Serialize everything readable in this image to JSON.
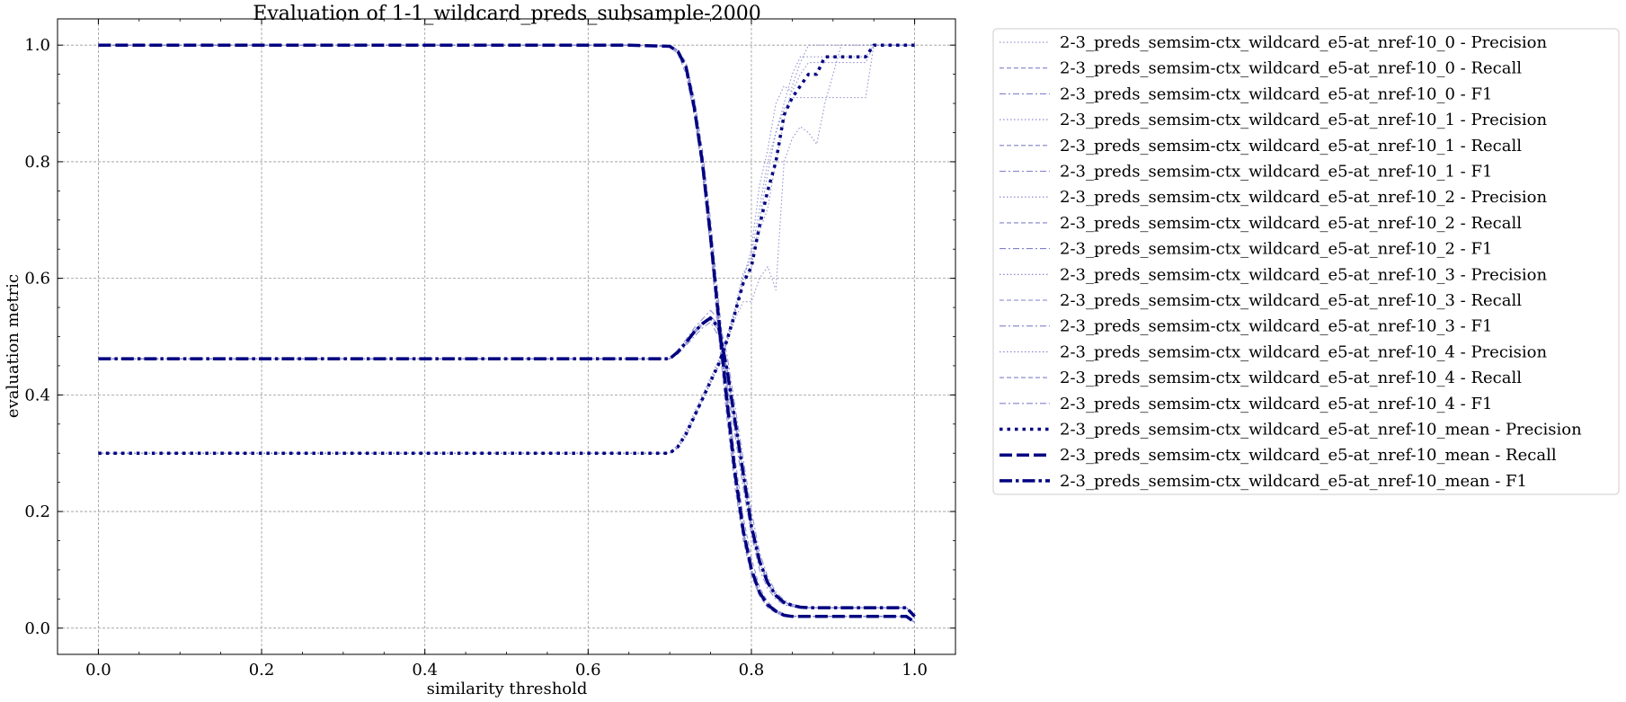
{
  "chart_data": {
    "type": "line",
    "title": "Evaluation of 1-1_wildcard_preds_subsample-2000",
    "xlabel": "similarity threshold",
    "ylabel": "evaluation metric",
    "xlim": [
      -0.05,
      1.05
    ],
    "ylim": [
      -0.045,
      1.045
    ],
    "xticks": [
      0.0,
      0.2,
      0.4,
      0.6,
      0.8,
      1.0
    ],
    "xtick_labels": [
      "0.0",
      "0.2",
      "0.4",
      "0.6",
      "0.8",
      "1.0"
    ],
    "yticks": [
      0.0,
      0.2,
      0.4,
      0.6,
      0.8,
      1.0
    ],
    "ytick_labels": [
      "0.0",
      "0.2",
      "0.4",
      "0.6",
      "0.8",
      "1.0"
    ],
    "grid": true,
    "legend_position": "outside-right-top",
    "colors": {
      "runs": "#8080cc",
      "mean": "#000080"
    },
    "x": [
      0.0,
      0.05,
      0.1,
      0.15,
      0.2,
      0.25,
      0.3,
      0.35,
      0.4,
      0.45,
      0.5,
      0.55,
      0.6,
      0.65,
      0.7,
      0.71,
      0.72,
      0.73,
      0.74,
      0.75,
      0.76,
      0.77,
      0.78,
      0.79,
      0.8,
      0.81,
      0.82,
      0.83,
      0.84,
      0.85,
      0.86,
      0.87,
      0.88,
      0.89,
      0.9,
      0.91,
      0.92,
      0.93,
      0.94,
      0.95,
      0.96,
      0.97,
      0.98,
      0.99,
      1.0
    ],
    "series": [
      {
        "name": "2-3_preds_semsim-ctx_wildcard_e5-at_nref-10_0 - Precision",
        "metric": "precision",
        "style": "run",
        "values": [
          0.3,
          0.3,
          0.3,
          0.3,
          0.3,
          0.3,
          0.3,
          0.3,
          0.3,
          0.3,
          0.3,
          0.3,
          0.3,
          0.3,
          0.3,
          0.315,
          0.34,
          0.37,
          0.4,
          0.43,
          0.46,
          0.5,
          0.55,
          0.61,
          0.63,
          0.68,
          0.72,
          0.8,
          0.87,
          0.93,
          0.97,
          1.0,
          1.0,
          1.0,
          1.0,
          1.0,
          1.0,
          1.0,
          1.0,
          1.0,
          1.0,
          1.0,
          1.0,
          1.0,
          1.0
        ]
      },
      {
        "name": "2-3_preds_semsim-ctx_wildcard_e5-at_nref-10_0 - Recall",
        "metric": "recall",
        "style": "run",
        "values": [
          1.0,
          1.0,
          1.0,
          1.0,
          1.0,
          1.0,
          1.0,
          1.0,
          1.0,
          1.0,
          1.0,
          1.0,
          1.0,
          1.0,
          0.998,
          0.99,
          0.965,
          0.9,
          0.8,
          0.68,
          0.54,
          0.4,
          0.27,
          0.17,
          0.1,
          0.06,
          0.04,
          0.03,
          0.022,
          0.02,
          0.02,
          0.02,
          0.02,
          0.02,
          0.02,
          0.02,
          0.02,
          0.02,
          0.02,
          0.02,
          0.02,
          0.02,
          0.02,
          0.02,
          0.01
        ]
      },
      {
        "name": "2-3_preds_semsim-ctx_wildcard_e5-at_nref-10_0 - F1",
        "metric": "f1",
        "style": "run",
        "values": [
          0.462,
          0.462,
          0.462,
          0.462,
          0.462,
          0.462,
          0.462,
          0.462,
          0.462,
          0.462,
          0.462,
          0.462,
          0.462,
          0.462,
          0.462,
          0.475,
          0.49,
          0.51,
          0.525,
          0.535,
          0.52,
          0.45,
          0.36,
          0.27,
          0.18,
          0.12,
          0.08,
          0.058,
          0.045,
          0.04,
          0.037,
          0.036,
          0.035,
          0.035,
          0.035,
          0.035,
          0.035,
          0.035,
          0.035,
          0.035,
          0.035,
          0.035,
          0.035,
          0.035,
          0.02
        ]
      },
      {
        "name": "2-3_preds_semsim-ctx_wildcard_e5-at_nref-10_1 - Precision",
        "metric": "precision",
        "style": "run",
        "values": [
          0.3,
          0.3,
          0.3,
          0.3,
          0.3,
          0.3,
          0.3,
          0.3,
          0.3,
          0.3,
          0.3,
          0.3,
          0.3,
          0.3,
          0.3,
          0.31,
          0.33,
          0.36,
          0.39,
          0.42,
          0.45,
          0.49,
          0.53,
          0.56,
          0.56,
          0.6,
          0.62,
          0.58,
          0.8,
          0.84,
          0.86,
          0.85,
          0.83,
          0.9,
          0.95,
          1.0,
          1.0,
          1.0,
          1.0,
          1.0,
          1.0,
          1.0,
          1.0,
          1.0,
          1.0
        ]
      },
      {
        "name": "2-3_preds_semsim-ctx_wildcard_e5-at_nref-10_1 - Recall",
        "metric": "recall",
        "style": "run",
        "values": [
          1.0,
          1.0,
          1.0,
          1.0,
          1.0,
          1.0,
          1.0,
          1.0,
          1.0,
          1.0,
          1.0,
          1.0,
          1.0,
          1.0,
          0.997,
          0.985,
          0.95,
          0.88,
          0.78,
          0.65,
          0.5,
          0.36,
          0.24,
          0.15,
          0.09,
          0.055,
          0.035,
          0.026,
          0.021,
          0.02,
          0.02,
          0.02,
          0.02,
          0.02,
          0.02,
          0.02,
          0.02,
          0.02,
          0.02,
          0.02,
          0.02,
          0.02,
          0.02,
          0.02,
          0.01
        ]
      },
      {
        "name": "2-3_preds_semsim-ctx_wildcard_e5-at_nref-10_1 - F1",
        "metric": "f1",
        "style": "run",
        "values": [
          0.462,
          0.462,
          0.462,
          0.462,
          0.462,
          0.462,
          0.462,
          0.462,
          0.462,
          0.462,
          0.462,
          0.462,
          0.462,
          0.462,
          0.462,
          0.47,
          0.485,
          0.5,
          0.515,
          0.525,
          0.5,
          0.42,
          0.33,
          0.24,
          0.16,
          0.1,
          0.068,
          0.05,
          0.04,
          0.037,
          0.036,
          0.035,
          0.035,
          0.035,
          0.035,
          0.035,
          0.035,
          0.035,
          0.035,
          0.035,
          0.035,
          0.035,
          0.035,
          0.035,
          0.02
        ]
      },
      {
        "name": "2-3_preds_semsim-ctx_wildcard_e5-at_nref-10_2 - Precision",
        "metric": "precision",
        "style": "run",
        "values": [
          0.3,
          0.3,
          0.3,
          0.3,
          0.3,
          0.3,
          0.3,
          0.3,
          0.3,
          0.3,
          0.3,
          0.3,
          0.3,
          0.3,
          0.3,
          0.312,
          0.335,
          0.365,
          0.395,
          0.425,
          0.455,
          0.495,
          0.545,
          0.59,
          0.62,
          0.7,
          0.78,
          0.85,
          0.89,
          0.91,
          0.91,
          0.91,
          0.91,
          0.91,
          0.91,
          0.91,
          0.91,
          0.91,
          0.91,
          1.0,
          1.0,
          1.0,
          1.0,
          1.0,
          1.0
        ]
      },
      {
        "name": "2-3_preds_semsim-ctx_wildcard_e5-at_nref-10_2 - Recall",
        "metric": "recall",
        "style": "run",
        "values": [
          1.0,
          1.0,
          1.0,
          1.0,
          1.0,
          1.0,
          1.0,
          1.0,
          1.0,
          1.0,
          1.0,
          1.0,
          1.0,
          1.0,
          0.999,
          0.992,
          0.97,
          0.91,
          0.82,
          0.7,
          0.56,
          0.42,
          0.29,
          0.19,
          0.12,
          0.07,
          0.045,
          0.032,
          0.024,
          0.021,
          0.02,
          0.02,
          0.02,
          0.02,
          0.02,
          0.02,
          0.02,
          0.02,
          0.02,
          0.02,
          0.02,
          0.02,
          0.02,
          0.02,
          0.01
        ]
      },
      {
        "name": "2-3_preds_semsim-ctx_wildcard_e5-at_nref-10_2 - F1",
        "metric": "f1",
        "style": "run",
        "values": [
          0.462,
          0.462,
          0.462,
          0.462,
          0.462,
          0.462,
          0.462,
          0.462,
          0.462,
          0.462,
          0.462,
          0.462,
          0.462,
          0.462,
          0.462,
          0.477,
          0.495,
          0.515,
          0.53,
          0.545,
          0.53,
          0.47,
          0.38,
          0.29,
          0.2,
          0.13,
          0.088,
          0.062,
          0.048,
          0.041,
          0.038,
          0.036,
          0.035,
          0.035,
          0.035,
          0.035,
          0.035,
          0.035,
          0.035,
          0.035,
          0.035,
          0.035,
          0.035,
          0.035,
          0.02
        ]
      },
      {
        "name": "2-3_preds_semsim-ctx_wildcard_e5-at_nref-10_3 - Precision",
        "metric": "precision",
        "style": "run",
        "values": [
          0.3,
          0.3,
          0.3,
          0.3,
          0.3,
          0.3,
          0.3,
          0.3,
          0.3,
          0.3,
          0.3,
          0.3,
          0.3,
          0.3,
          0.3,
          0.308,
          0.33,
          0.36,
          0.39,
          0.42,
          0.45,
          0.49,
          0.54,
          0.6,
          0.65,
          0.76,
          0.82,
          0.9,
          0.93,
          0.92,
          0.95,
          0.97,
          0.97,
          0.97,
          0.97,
          0.97,
          0.97,
          0.97,
          0.97,
          1.0,
          1.0,
          1.0,
          1.0,
          1.0,
          1.0
        ]
      },
      {
        "name": "2-3_preds_semsim-ctx_wildcard_e5-at_nref-10_3 - Recall",
        "metric": "recall",
        "style": "run",
        "values": [
          1.0,
          1.0,
          1.0,
          1.0,
          1.0,
          1.0,
          1.0,
          1.0,
          1.0,
          1.0,
          1.0,
          1.0,
          1.0,
          1.0,
          0.998,
          0.988,
          0.96,
          0.89,
          0.79,
          0.66,
          0.52,
          0.38,
          0.26,
          0.16,
          0.095,
          0.058,
          0.038,
          0.028,
          0.022,
          0.02,
          0.02,
          0.02,
          0.02,
          0.02,
          0.02,
          0.02,
          0.02,
          0.02,
          0.02,
          0.02,
          0.02,
          0.02,
          0.02,
          0.02,
          0.01
        ]
      },
      {
        "name": "2-3_preds_semsim-ctx_wildcard_e5-at_nref-10_3 - F1",
        "metric": "f1",
        "style": "run",
        "values": [
          0.462,
          0.462,
          0.462,
          0.462,
          0.462,
          0.462,
          0.462,
          0.462,
          0.462,
          0.462,
          0.462,
          0.462,
          0.462,
          0.462,
          0.462,
          0.472,
          0.488,
          0.505,
          0.52,
          0.53,
          0.51,
          0.44,
          0.35,
          0.26,
          0.17,
          0.11,
          0.075,
          0.055,
          0.043,
          0.038,
          0.036,
          0.035,
          0.035,
          0.035,
          0.035,
          0.035,
          0.035,
          0.035,
          0.035,
          0.035,
          0.035,
          0.035,
          0.035,
          0.035,
          0.02
        ]
      },
      {
        "name": "2-3_preds_semsim-ctx_wildcard_e5-at_nref-10_4 - Precision",
        "metric": "precision",
        "style": "run",
        "values": [
          0.3,
          0.3,
          0.3,
          0.3,
          0.3,
          0.3,
          0.3,
          0.3,
          0.3,
          0.3,
          0.3,
          0.3,
          0.3,
          0.3,
          0.3,
          0.31,
          0.332,
          0.362,
          0.392,
          0.422,
          0.452,
          0.492,
          0.54,
          0.6,
          0.64,
          0.72,
          0.8,
          0.85,
          0.9,
          0.95,
          0.98,
          0.98,
          0.98,
          0.98,
          0.98,
          0.98,
          0.98,
          0.98,
          0.98,
          1.0,
          1.0,
          1.0,
          1.0,
          1.0,
          1.0
        ]
      },
      {
        "name": "2-3_preds_semsim-ctx_wildcard_e5-at_nref-10_4 - Recall",
        "metric": "recall",
        "style": "run",
        "values": [
          1.0,
          1.0,
          1.0,
          1.0,
          1.0,
          1.0,
          1.0,
          1.0,
          1.0,
          1.0,
          1.0,
          1.0,
          1.0,
          1.0,
          0.998,
          0.99,
          0.963,
          0.895,
          0.8,
          0.67,
          0.53,
          0.39,
          0.265,
          0.165,
          0.1,
          0.06,
          0.04,
          0.03,
          0.022,
          0.02,
          0.02,
          0.02,
          0.02,
          0.02,
          0.02,
          0.02,
          0.02,
          0.02,
          0.02,
          0.02,
          0.02,
          0.02,
          0.02,
          0.02,
          0.01
        ]
      },
      {
        "name": "2-3_preds_semsim-ctx_wildcard_e5-at_nref-10_4 - F1",
        "metric": "f1",
        "style": "run",
        "values": [
          0.462,
          0.462,
          0.462,
          0.462,
          0.462,
          0.462,
          0.462,
          0.462,
          0.462,
          0.462,
          0.462,
          0.462,
          0.462,
          0.462,
          0.462,
          0.474,
          0.49,
          0.508,
          0.522,
          0.532,
          0.515,
          0.445,
          0.355,
          0.265,
          0.175,
          0.115,
          0.078,
          0.057,
          0.044,
          0.039,
          0.036,
          0.035,
          0.035,
          0.035,
          0.035,
          0.035,
          0.035,
          0.035,
          0.035,
          0.035,
          0.035,
          0.035,
          0.035,
          0.035,
          0.02
        ]
      },
      {
        "name": "2-3_preds_semsim-ctx_wildcard_e5-at_nref-10_mean - Precision",
        "metric": "precision",
        "style": "mean",
        "values": [
          0.3,
          0.3,
          0.3,
          0.3,
          0.3,
          0.3,
          0.3,
          0.3,
          0.3,
          0.3,
          0.3,
          0.3,
          0.3,
          0.3,
          0.3,
          0.311,
          0.333,
          0.363,
          0.393,
          0.423,
          0.453,
          0.493,
          0.541,
          0.592,
          0.62,
          0.69,
          0.75,
          0.8,
          0.88,
          0.91,
          0.93,
          0.95,
          0.95,
          0.98,
          0.98,
          0.98,
          0.98,
          0.98,
          0.98,
          1.0,
          1.0,
          1.0,
          1.0,
          1.0,
          1.0
        ]
      },
      {
        "name": "2-3_preds_semsim-ctx_wildcard_e5-at_nref-10_mean - Recall",
        "metric": "recall",
        "style": "mean",
        "values": [
          1.0,
          1.0,
          1.0,
          1.0,
          1.0,
          1.0,
          1.0,
          1.0,
          1.0,
          1.0,
          1.0,
          1.0,
          1.0,
          1.0,
          0.998,
          0.989,
          0.962,
          0.893,
          0.798,
          0.672,
          0.53,
          0.39,
          0.265,
          0.167,
          0.101,
          0.061,
          0.04,
          0.029,
          0.022,
          0.02,
          0.02,
          0.02,
          0.02,
          0.02,
          0.02,
          0.02,
          0.02,
          0.02,
          0.02,
          0.02,
          0.02,
          0.02,
          0.02,
          0.02,
          0.01
        ]
      },
      {
        "name": "2-3_preds_semsim-ctx_wildcard_e5-at_nref-10_mean - F1",
        "metric": "f1",
        "style": "mean",
        "values": [
          0.462,
          0.462,
          0.462,
          0.462,
          0.462,
          0.462,
          0.462,
          0.462,
          0.462,
          0.462,
          0.462,
          0.462,
          0.462,
          0.462,
          0.462,
          0.474,
          0.49,
          0.508,
          0.522,
          0.532,
          0.515,
          0.445,
          0.355,
          0.265,
          0.175,
          0.115,
          0.078,
          0.056,
          0.044,
          0.039,
          0.036,
          0.035,
          0.035,
          0.035,
          0.035,
          0.035,
          0.035,
          0.035,
          0.035,
          0.035,
          0.035,
          0.035,
          0.035,
          0.035,
          0.02
        ]
      }
    ]
  }
}
